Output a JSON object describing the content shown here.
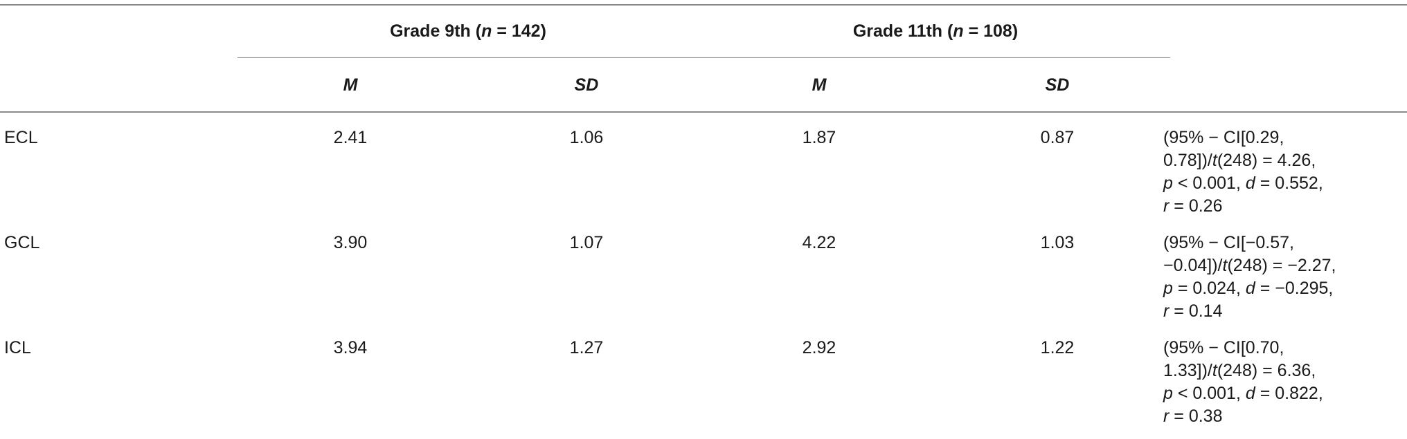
{
  "table": {
    "groups": [
      {
        "label_prefix": "Grade 9th (",
        "n_var": "n",
        "n_value": " = 142)"
      },
      {
        "label_prefix": "Grade 11th (",
        "n_var": "n",
        "n_value": " = 108)"
      }
    ],
    "subheaders": [
      "M",
      "SD",
      "M",
      "SD"
    ],
    "rows": [
      {
        "label": "ECL",
        "values": [
          "2.41",
          "1.06",
          "1.87",
          "0.87"
        ],
        "stats": {
          "line1": "(95% − CI[0.29,",
          "line2_a": "0.78])/",
          "line2_t": "t",
          "line2_b": "(248) = 4.26,",
          "line3_p": "p",
          "line3_a": " < 0.001, ",
          "line3_d": "d",
          "line3_b": " = 0.552,",
          "line4_r": "r",
          "line4_a": " = 0.26"
        }
      },
      {
        "label": "GCL",
        "values": [
          "3.90",
          "1.07",
          "4.22",
          "1.03"
        ],
        "stats": {
          "line1": "(95% − CI[−0.57,",
          "line2_a": "−0.04])/",
          "line2_t": "t",
          "line2_b": "(248) = −2.27,",
          "line3_p": "p",
          "line3_a": " = 0.024, ",
          "line3_d": "d",
          "line3_b": " = −0.295,",
          "line4_r": "r",
          "line4_a": " = 0.14"
        }
      },
      {
        "label": "ICL",
        "values": [
          "3.94",
          "1.27",
          "2.92",
          "1.22"
        ],
        "stats": {
          "line1": "(95% − CI[0.70,",
          "line2_a": "1.33])/",
          "line2_t": "t",
          "line2_b": "(248) = 6.36,",
          "line3_p": "p",
          "line3_a": " < 0.001, ",
          "line3_d": "d",
          "line3_b": " = 0.822,",
          "line4_r": "r",
          "line4_a": " = 0.38"
        }
      }
    ]
  }
}
